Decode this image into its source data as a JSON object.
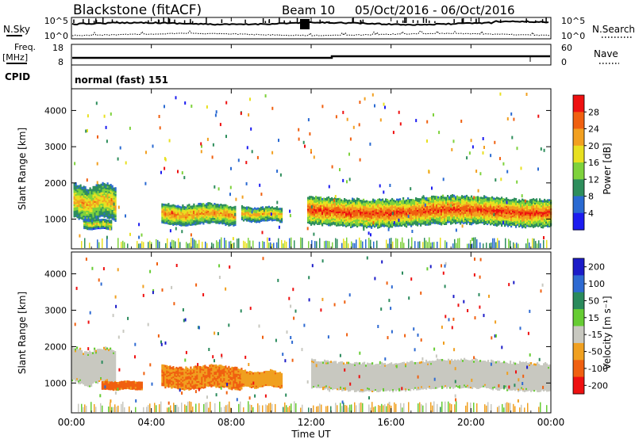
{
  "header": {
    "station": "Blackstone (fitACF)",
    "beam": "Beam 10",
    "date_range": "05/Oct/2016 - 06/Oct/2016"
  },
  "sky_panel": {
    "left_label": "N.Sky",
    "left_ticks": [
      "10^5",
      "10^0"
    ],
    "right_ticks": [
      "10^5",
      "10^0"
    ],
    "right_label": "N.Search"
  },
  "freq_panel": {
    "left_label_1": "Freq.",
    "left_label_2": "[MHz]",
    "left_ticks": [
      "18",
      "8"
    ],
    "right_ticks": [
      "60",
      "0"
    ],
    "right_label": "Nave"
  },
  "cpid_panel": {
    "label": "CPID",
    "mode": "normal (fast) 151"
  },
  "chart_data": [
    {
      "type": "heatmap",
      "name": "power",
      "ylabel": "Slant Range [km]",
      "ylim": [
        180,
        4600
      ],
      "yticks": [
        "1000",
        "2000",
        "3000",
        "4000"
      ],
      "ytick_values": [
        1000,
        2000,
        3000,
        4000
      ],
      "colorbar": {
        "label": "Power [dB]",
        "ticks": [
          "4",
          "8",
          "12",
          "16",
          "20",
          "24",
          "28"
        ],
        "tick_values": [
          4,
          8,
          12,
          16,
          20,
          24,
          28
        ],
        "range": [
          0,
          32
        ],
        "colors": [
          "#1c1cf0",
          "#2a6ad2",
          "#2e8e5c",
          "#7ed23c",
          "#e8e020",
          "#f2a020",
          "#f06010",
          "#ee1010"
        ]
      },
      "bands": [
        {
          "x0": 0.1,
          "x1": 2.2,
          "y0": 900,
          "y1": 2000,
          "p": 20
        },
        {
          "x0": 0.6,
          "x1": 2.0,
          "y0": 700,
          "y1": 1000,
          "p": 17
        },
        {
          "x0": 4.5,
          "x1": 8.2,
          "y0": 800,
          "y1": 1450,
          "p": 22
        },
        {
          "x0": 8.5,
          "x1": 10.5,
          "y0": 900,
          "y1": 1350,
          "p": 20
        },
        {
          "x0": 11.8,
          "x1": 24.0,
          "y0": 750,
          "y1": 1650,
          "p": 26
        }
      ]
    },
    {
      "type": "heatmap",
      "name": "velocity",
      "ylabel": "Slant Range [km]",
      "ylim": [
        180,
        4600
      ],
      "yticks": [
        "1000",
        "2000",
        "3000",
        "4000"
      ],
      "ytick_values": [
        1000,
        2000,
        3000,
        4000
      ],
      "colorbar": {
        "label": "Velocity [m s⁻¹]",
        "ticks": [
          "200",
          "100",
          "50",
          "15",
          "-15",
          "-50",
          "-100",
          "-200"
        ],
        "colors": [
          "#1c1cc8",
          "#2e6ad2",
          "#2a8a5c",
          "#66cc33",
          "#c8c8c0",
          "#f0a020",
          "#f06010",
          "#ee1010"
        ]
      },
      "bands": [
        {
          "x0": 0.0,
          "x1": 2.2,
          "y0": 900,
          "y1": 2000,
          "v": 0
        },
        {
          "x0": 1.5,
          "x1": 3.5,
          "y0": 800,
          "y1": 1050,
          "v": -60
        },
        {
          "x0": 4.5,
          "x1": 8.5,
          "y0": 800,
          "y1": 1500,
          "v": -50
        },
        {
          "x0": 8.5,
          "x1": 10.5,
          "y0": 850,
          "y1": 1350,
          "v": -40
        },
        {
          "x0": 12.0,
          "x1": 24.0,
          "y0": 750,
          "y1": 1650,
          "v": 0
        }
      ]
    }
  ],
  "x_axis": {
    "label": "Time UT",
    "range": [
      0,
      24
    ],
    "ticks": [
      "00:00",
      "04:00",
      "08:00",
      "12:00",
      "16:00",
      "20:00",
      "00:00"
    ],
    "tick_values": [
      0,
      4,
      8,
      12,
      16,
      20,
      24
    ]
  },
  "colors": {
    "frame": "#000000",
    "velocity_ground": "#c8c8c0"
  }
}
